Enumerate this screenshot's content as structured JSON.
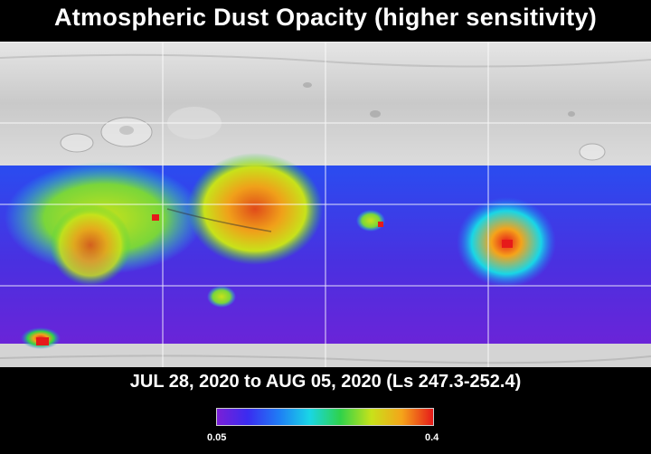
{
  "title": "Atmospheric Dust Opacity (higher sensitivity)",
  "date_range": "JUL 28, 2020 to AUG 05, 2020 (Ls 247.3-252.4)",
  "colorbar": {
    "min_label": "0.05",
    "max_label": "0.4",
    "colors": [
      "#7a1fd6",
      "#3a2cf0",
      "#1f7cf5",
      "#19d6e6",
      "#2fd24a",
      "#c8e21a",
      "#f5a31a",
      "#e61a1a"
    ]
  },
  "map_colors": {
    "terrain_light": "#d8d8d8",
    "terrain_dark": "#9a9a9a",
    "grid": "#ffffff"
  }
}
